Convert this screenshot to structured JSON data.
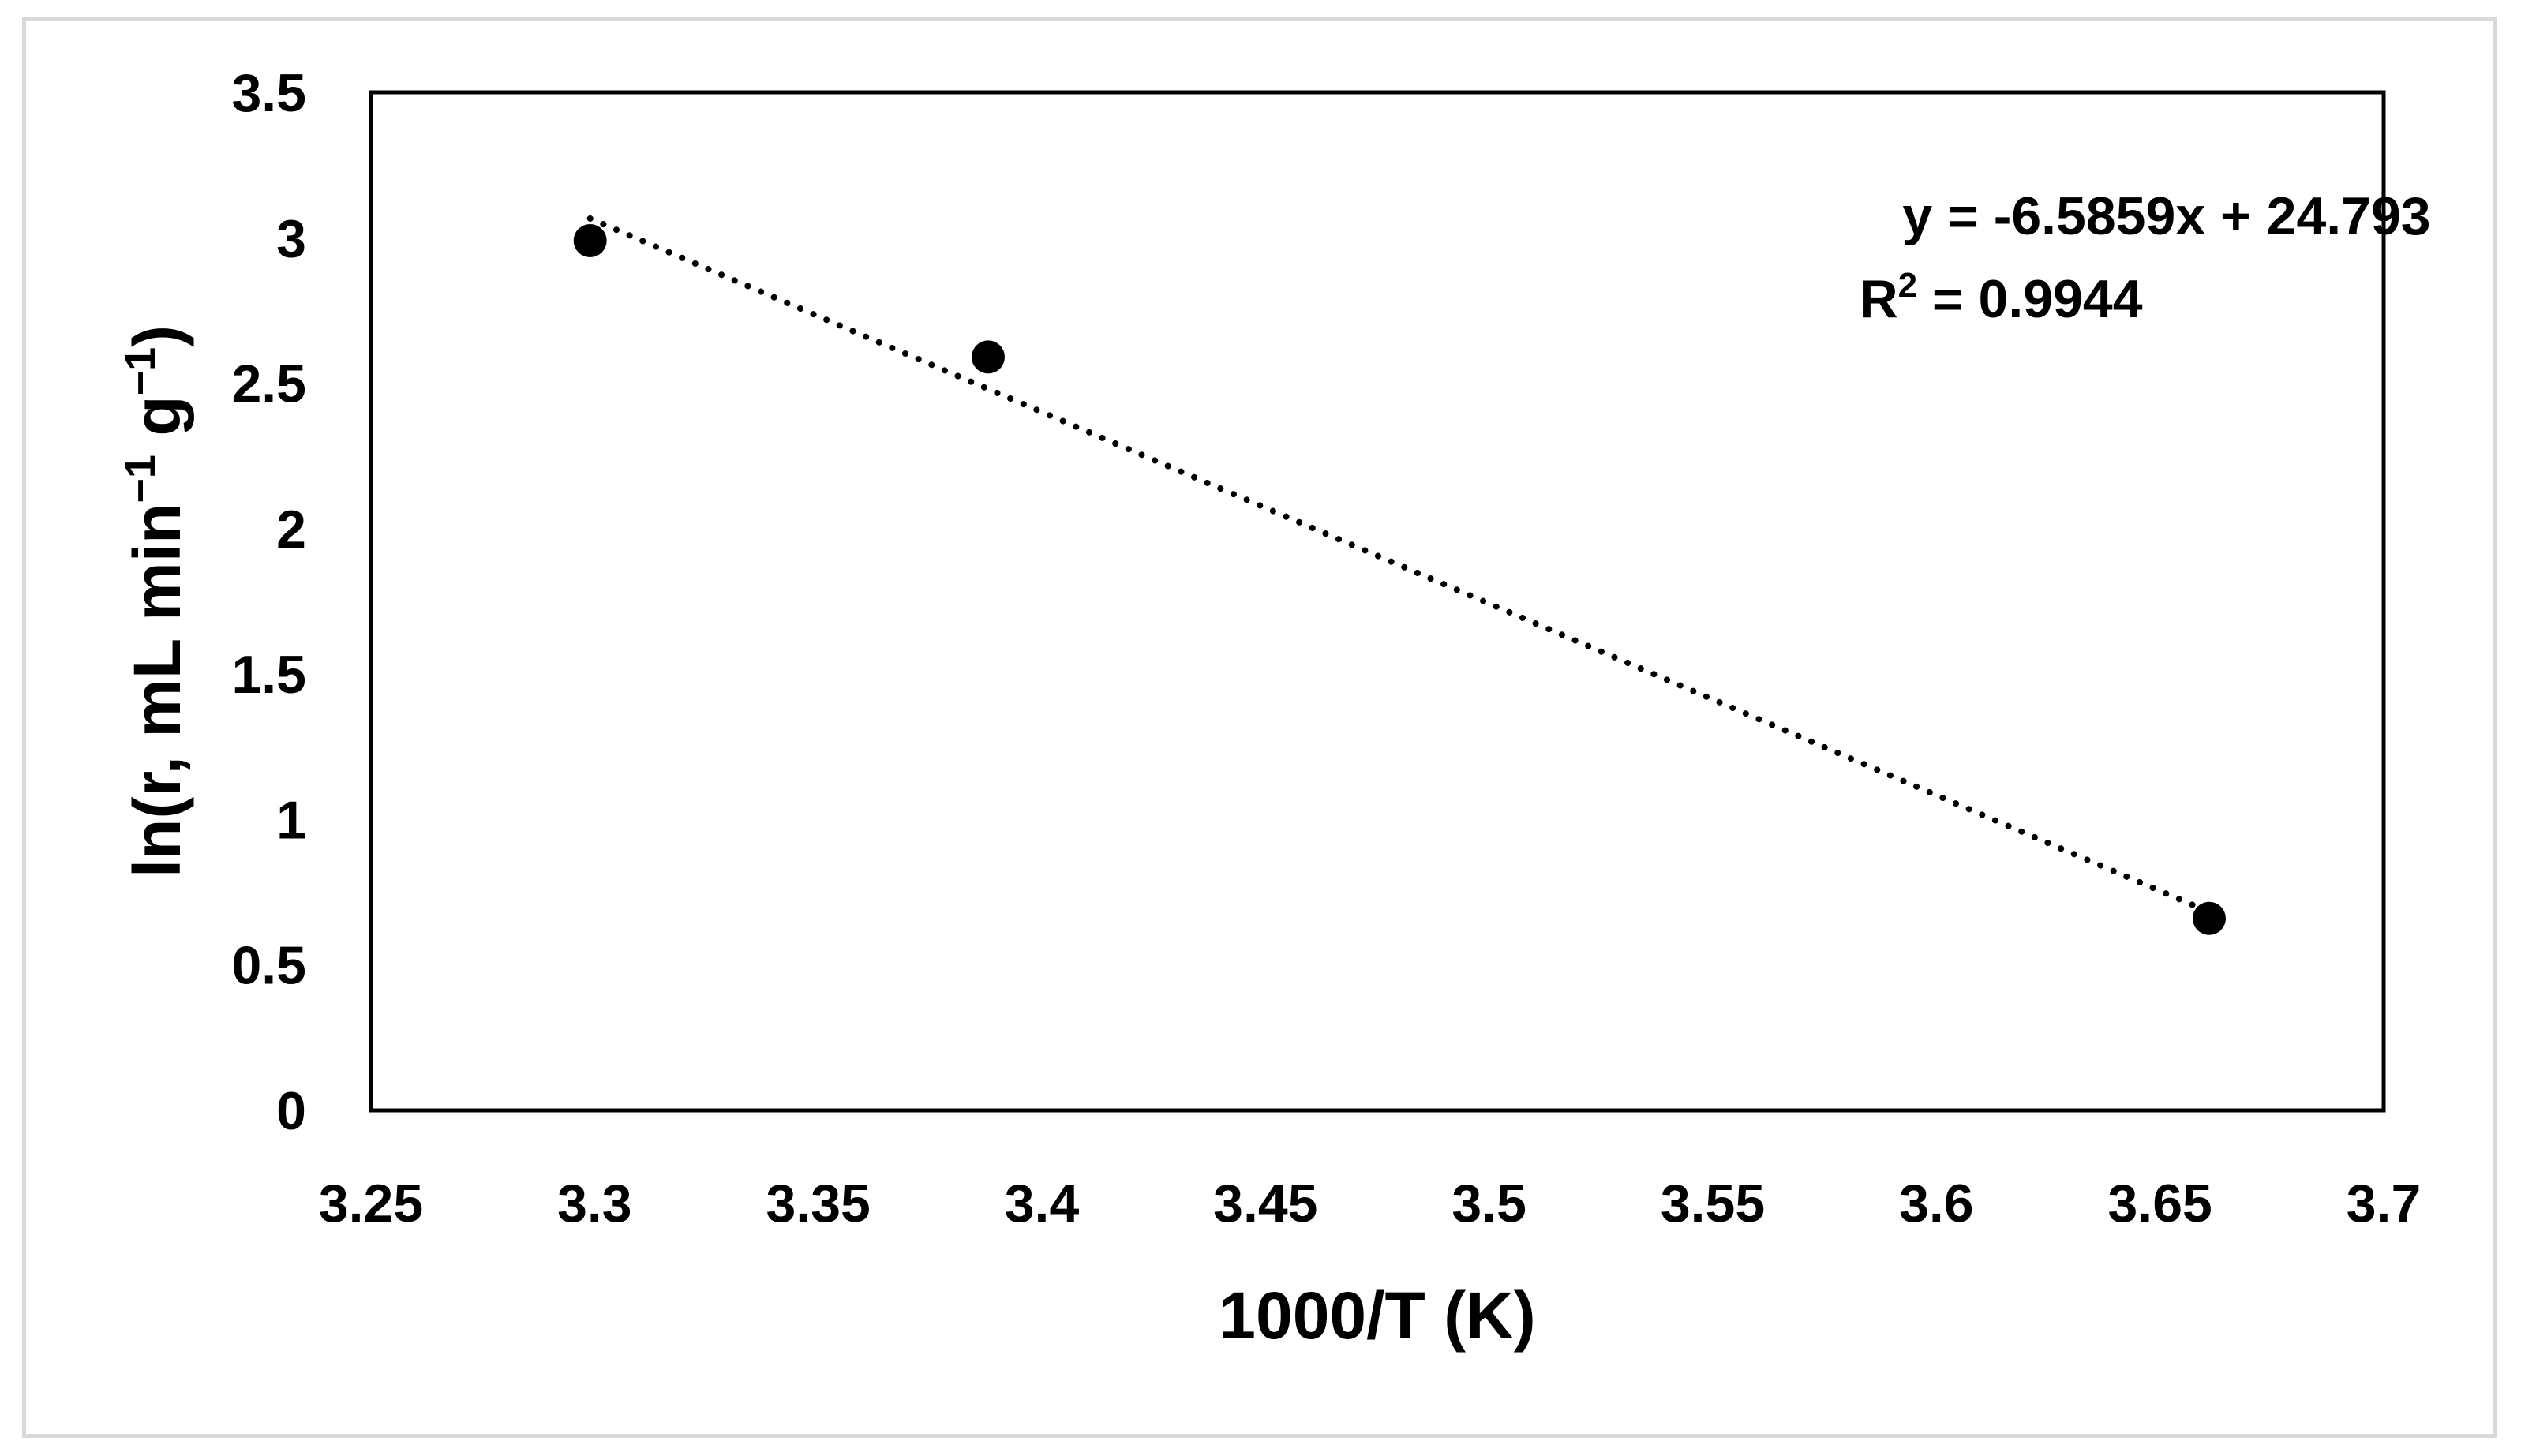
{
  "chart_data": {
    "type": "scatter",
    "xlabel": "1000/T (K)",
    "ylabel": {
      "parts": [
        "ln(r, mL min",
        "−1",
        " g",
        "−1",
        ")"
      ]
    },
    "xlim": [
      3.25,
      3.7
    ],
    "ylim": [
      0,
      3.5
    ],
    "x_ticks": [
      3.25,
      3.3,
      3.35,
      3.4,
      3.45,
      3.5,
      3.55,
      3.6,
      3.65,
      3.7
    ],
    "y_ticks": [
      0,
      0.5,
      1,
      1.5,
      2,
      2.5,
      3,
      3.5
    ],
    "x_tick_labels": [
      "3.25",
      "3.3",
      "3.35",
      "3.4",
      "3.45",
      "3.5",
      "3.55",
      "3.6",
      "3.65",
      "3.7"
    ],
    "y_tick_labels": [
      "0",
      "0.5",
      "1",
      "1.5",
      "2",
      "2.5",
      "3",
      "3.5"
    ],
    "grid": false,
    "series": [
      {
        "points": [
          {
            "x": 3.299,
            "y": 2.99
          },
          {
            "x": 3.388,
            "y": 2.59
          },
          {
            "x": 3.661,
            "y": 0.66
          }
        ],
        "marker_color": "#000000"
      }
    ],
    "trendline": {
      "type": "linear",
      "slope": -6.5859,
      "intercept": 24.793,
      "x_range": [
        3.299,
        3.661
      ],
      "style": "dotted",
      "color": "#000000"
    },
    "equation_label": "y = -6.5859x + 24.793",
    "r2_label": {
      "parts": [
        "R",
        "2",
        " = 0.9944"
      ]
    }
  }
}
